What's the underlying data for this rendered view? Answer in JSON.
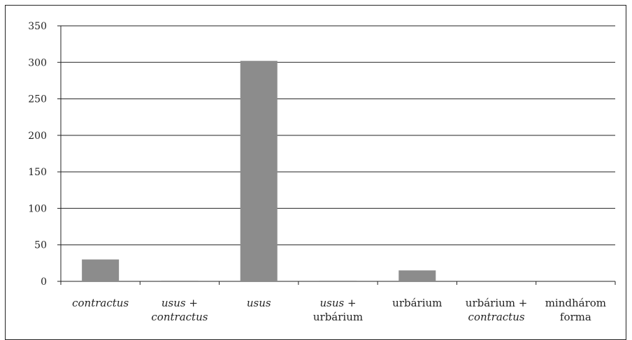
{
  "chart_data": {
    "type": "bar",
    "title": "",
    "xlabel": "",
    "ylabel": "",
    "ylim": [
      0,
      350
    ],
    "yticks": [
      0,
      50,
      100,
      150,
      200,
      250,
      300,
      350
    ],
    "grid": true,
    "legend": "none",
    "bar_color": "#8c8c8c",
    "categories": [
      {
        "lines": [
          [
            {
              "t": "contractus",
              "italic": true
            }
          ]
        ]
      },
      {
        "lines": [
          [
            {
              "t": "usus",
              "italic": true
            },
            {
              "t": " +",
              "italic": false
            }
          ],
          [
            {
              "t": "contractus",
              "italic": true
            }
          ]
        ]
      },
      {
        "lines": [
          [
            {
              "t": "usus",
              "italic": true
            }
          ]
        ]
      },
      {
        "lines": [
          [
            {
              "t": "usus",
              "italic": true
            },
            {
              "t": " +",
              "italic": false
            }
          ],
          [
            {
              "t": "urbárium",
              "italic": false
            }
          ]
        ]
      },
      {
        "lines": [
          [
            {
              "t": "urbárium",
              "italic": false
            }
          ]
        ]
      },
      {
        "lines": [
          [
            {
              "t": "urbárium +",
              "italic": false
            }
          ],
          [
            {
              "t": "contractus",
              "italic": true
            }
          ]
        ]
      },
      {
        "lines": [
          [
            {
              "t": "mindhárom",
              "italic": false
            }
          ],
          [
            {
              "t": "forma",
              "italic": false
            }
          ]
        ]
      }
    ],
    "values": [
      30,
      1,
      302,
      1,
      15,
      0,
      0
    ]
  }
}
